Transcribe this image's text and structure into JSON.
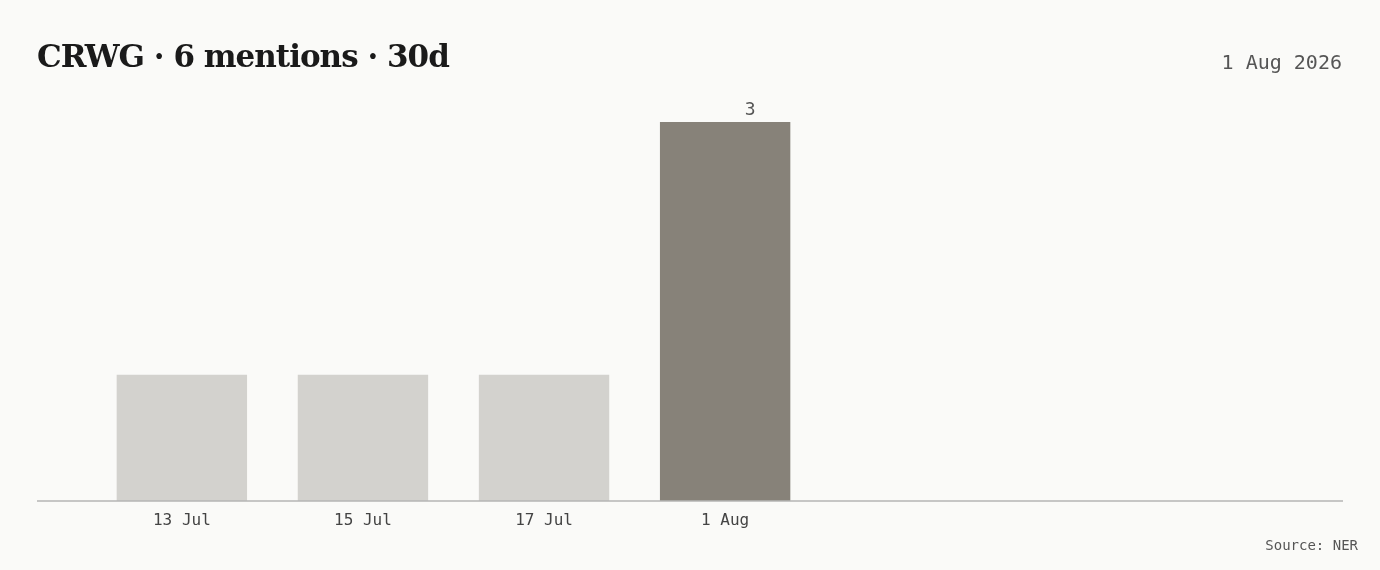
{
  "chart_data": {
    "type": "bar",
    "title": "CRWG · 6 mentions · 30d",
    "subtitle": "1 Aug 2026",
    "categories": [
      "13 Jul",
      "15 Jul",
      "17 Jul",
      "1 Aug"
    ],
    "values": [
      1,
      1,
      1,
      3
    ],
    "colors": [
      "#d3d2ce",
      "#d3d2ce",
      "#d3d2ce",
      "#878279"
    ],
    "value_labels": [
      null,
      null,
      null,
      "3"
    ],
    "annotations": [
      "Source: NER"
    ]
  }
}
